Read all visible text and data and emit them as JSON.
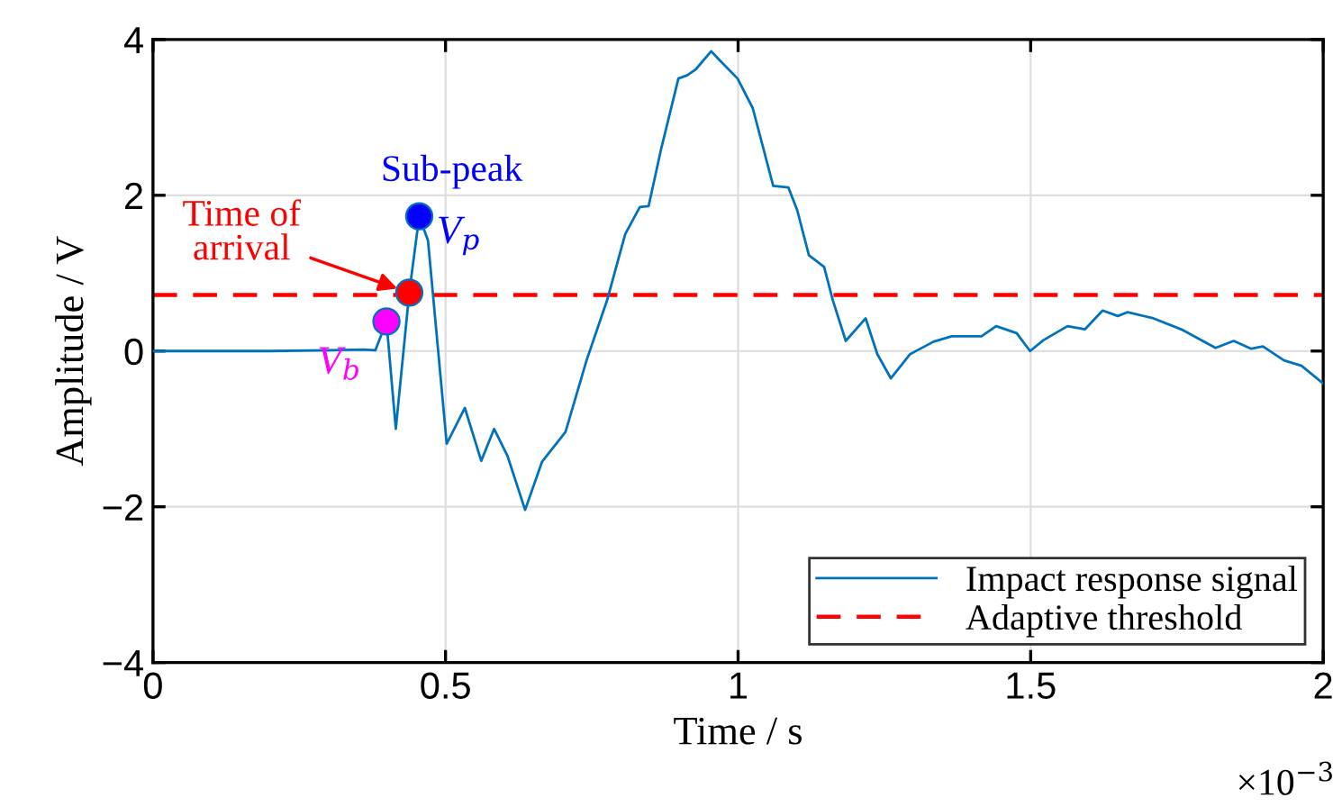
{
  "chart_data": {
    "type": "line",
    "xlabel": "Time / s",
    "ylabel": "Amplitude / V",
    "xlim": [
      0,
      2
    ],
    "ylim": [
      -4,
      4
    ],
    "xticks": [
      0,
      0.5,
      1,
      1.5,
      2
    ],
    "yticks": [
      -4,
      -2,
      0,
      2,
      4
    ],
    "grid": true,
    "legend": "bottom right",
    "marker": "none",
    "line_style": "solid",
    "series": [
      {
        "name": "Impact response signal",
        "color": "#0072bd",
        "x": [
          0,
          0.1,
          0.2,
          0.3,
          0.36,
          0.38,
          0.399,
          0.415,
          0.438,
          0.455,
          0.47,
          0.502,
          0.533,
          0.561,
          0.583,
          0.606,
          0.636,
          0.665,
          0.705,
          0.741,
          0.776,
          0.807,
          0.832,
          0.847,
          0.868,
          0.898,
          0.913,
          0.928,
          0.954,
          0.969,
          0.999,
          1.025,
          1.06,
          1.086,
          1.101,
          1.121,
          1.147,
          1.162,
          1.184,
          1.218,
          1.238,
          1.261,
          1.294,
          1.334,
          1.365,
          1.416,
          1.441,
          1.476,
          1.499,
          1.522,
          1.563,
          1.593,
          1.623,
          1.649,
          1.666,
          1.71,
          1.76,
          1.816,
          1.847,
          1.877,
          1.897,
          1.933,
          1.963,
          1.999
        ],
        "values": [
          0,
          0,
          0,
          0.01,
          0.02,
          0.01,
          0.38,
          -1.0,
          0.75,
          1.73,
          1.42,
          -1.19,
          -0.73,
          -1.41,
          -1.0,
          -1.35,
          -2.04,
          -1.42,
          -1.04,
          -0.12,
          0.65,
          1.5,
          1.85,
          1.86,
          2.58,
          3.5,
          3.54,
          3.62,
          3.85,
          3.73,
          3.5,
          3.12,
          2.12,
          2.1,
          1.81,
          1.23,
          1.08,
          0.65,
          0.13,
          0.42,
          -0.04,
          -0.35,
          -0.04,
          0.12,
          0.19,
          0.19,
          0.32,
          0.23,
          0.0,
          0.14,
          0.32,
          0.28,
          0.52,
          0.45,
          0.5,
          0.42,
          0.27,
          0.04,
          0.13,
          0.03,
          0.06,
          -0.12,
          -0.19,
          -0.41
        ]
      },
      {
        "name": "V$_{b}$",
        "type": "scatter",
        "marker": "circle",
        "color": "#ff00ff",
        "x": [
          0.399
        ],
        "values": [
          0.38
        ]
      },
      {
        "type": "scatter",
        "marker": "circle",
        "color": "#ff0000",
        "x": [
          0.438
        ],
        "values": [
          0.75
        ]
      },
      {
        "name": "V$_{p}$",
        "type": "scatter",
        "marker": "circle",
        "color": "#0000ff",
        "x": [
          0.455
        ],
        "values": [
          1.73
        ]
      }
    ],
    "ref_lines": [
      {
        "axis": "y",
        "value": 0.72,
        "label": "Adaptive threshold",
        "color": "#ff0000",
        "line_style": "dashed"
      }
    ],
    "annotations": [
      {
        "text": "Time of\narrival",
        "x": 0.438,
        "y": 0.75
      },
      {
        "text": "Sub-peak",
        "x": 0.455,
        "y": 1.73
      },
      "×10$^{−3}$"
    ]
  }
}
